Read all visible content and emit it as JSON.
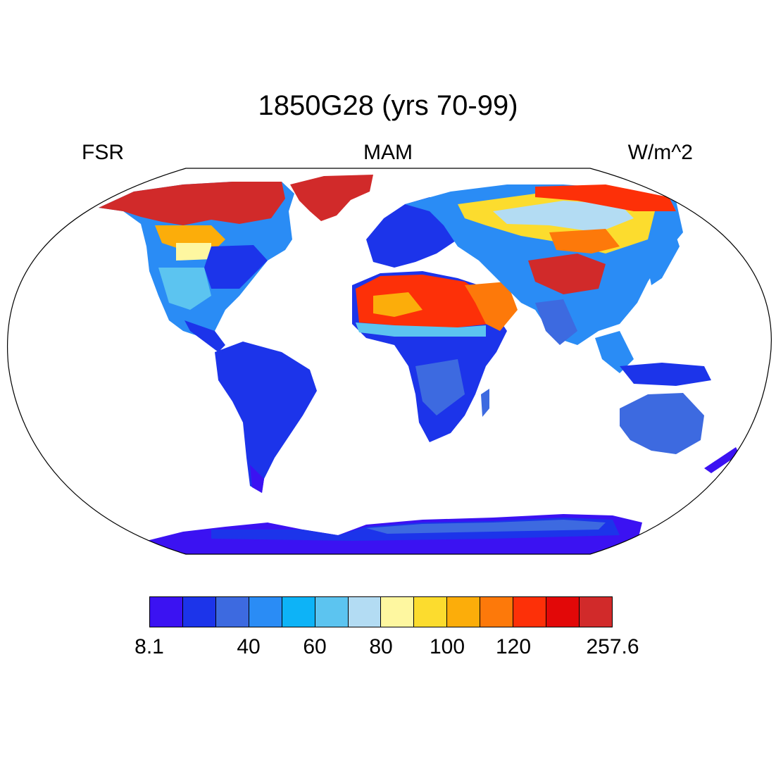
{
  "title": "1850G28 (yrs 70-99)",
  "subtitle_left": "FSR",
  "subtitle_center": "MAM",
  "subtitle_right": "W/m^2",
  "colorbar": {
    "colors": [
      "#3b12f2",
      "#1c34ea",
      "#3d6ae0",
      "#2a8cf5",
      "#0db3f7",
      "#5cc4f0",
      "#b3dcf3",
      "#fef7a0",
      "#fcdc2e",
      "#fcad0a",
      "#fd790a",
      "#fd3008",
      "#e20808",
      "#d12a2a"
    ],
    "labels": [
      {
        "text": "8.1",
        "index": 0
      },
      {
        "text": "40",
        "index": 3
      },
      {
        "text": "60",
        "index": 5
      },
      {
        "text": "80",
        "index": 7
      },
      {
        "text": "100",
        "index": 9
      },
      {
        "text": "120",
        "index": 11
      },
      {
        "text": "257.6",
        "index": 14
      }
    ]
  }
}
